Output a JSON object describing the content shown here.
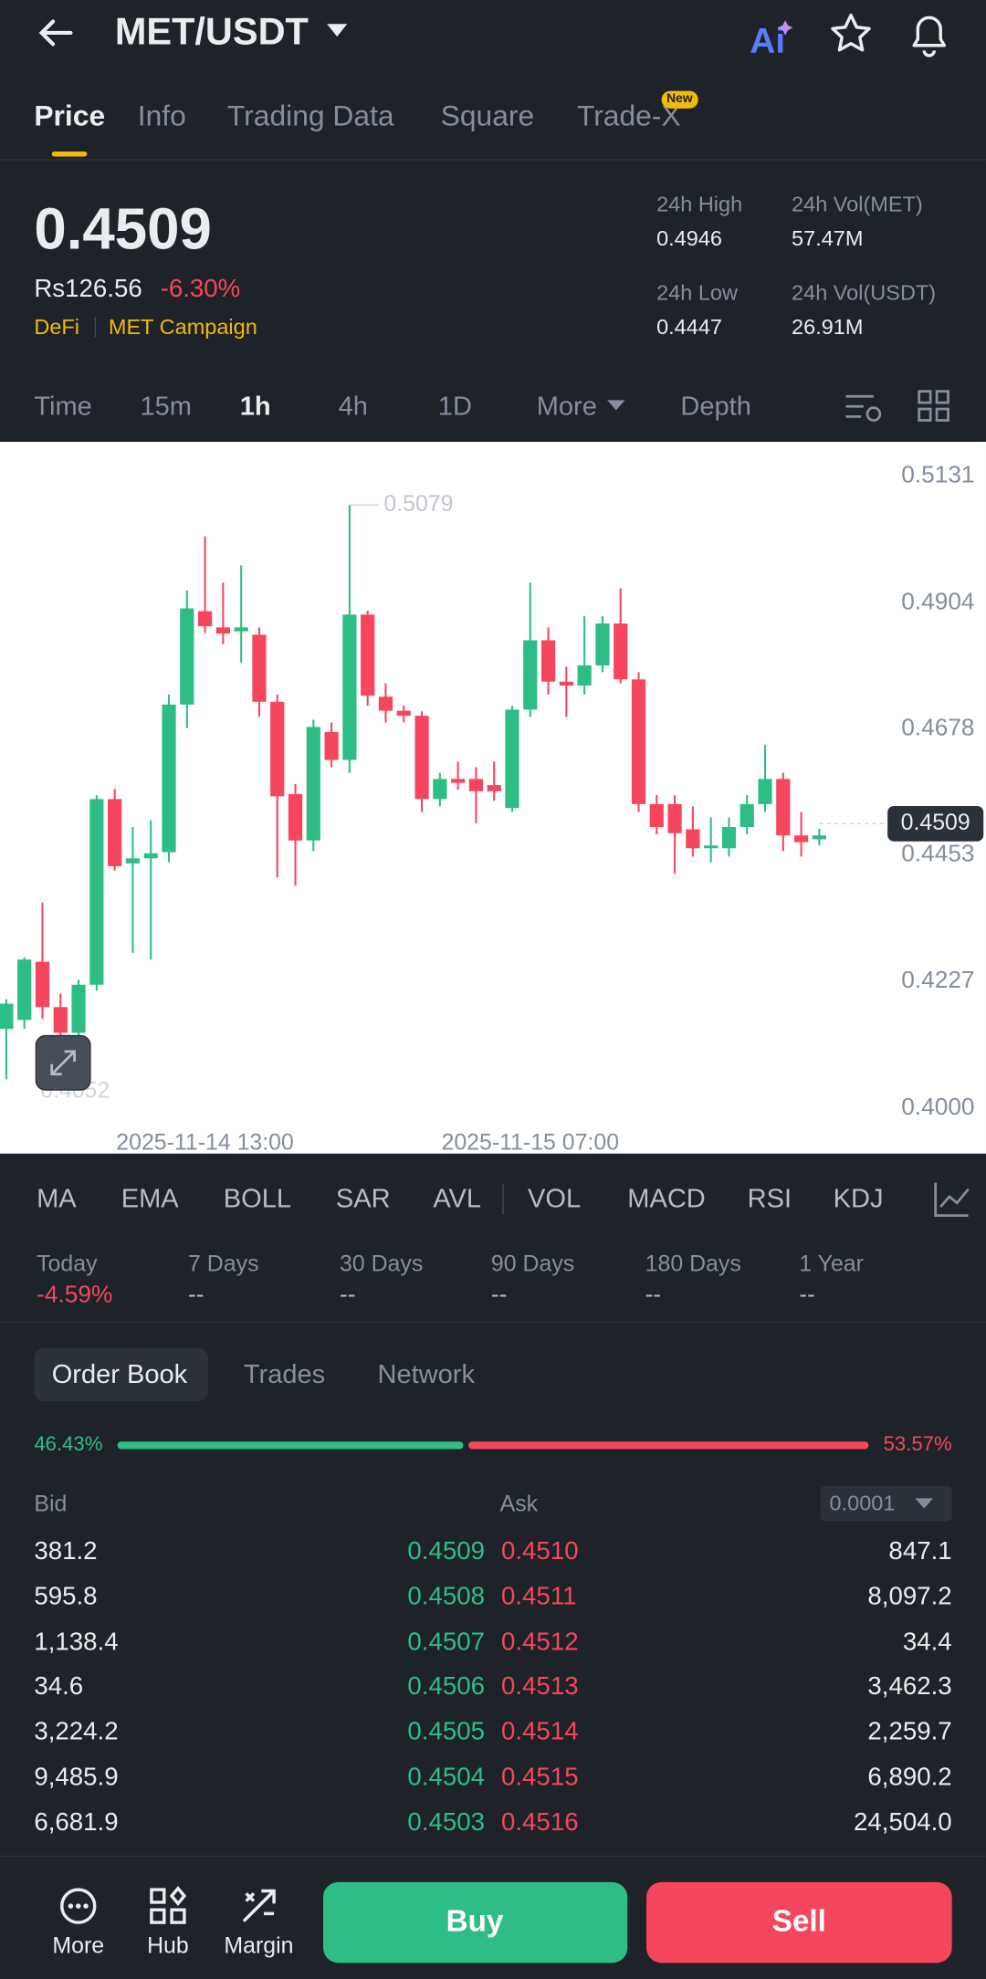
{
  "header": {
    "title": "MET/USDT"
  },
  "tabs": [
    "Price",
    "Info",
    "Trading Data",
    "Square",
    "Trade-X"
  ],
  "tab_badge": "New",
  "price": {
    "last": "0.4509",
    "local": "Rs126.56",
    "change": "-6.30%",
    "tags": [
      "DeFi",
      "MET Campaign"
    ]
  },
  "stats": [
    {
      "label": "24h High",
      "value": "0.4946"
    },
    {
      "label": "24h Vol(MET)",
      "value": "57.47M"
    },
    {
      "label": "24h Low",
      "value": "0.4447"
    },
    {
      "label": "24h Vol(USDT)",
      "value": "26.91M"
    }
  ],
  "intervals": [
    "Time",
    "15m",
    "1h",
    "4h",
    "1D",
    "More",
    "Depth"
  ],
  "chart": {
    "type": "candlestick",
    "up_color": "#2ebd85",
    "down_color": "#f6465d",
    "open": [
      0.4142,
      0.4158,
      0.4262,
      0.4181,
      0.4135,
      0.4221,
      0.4553,
      0.4438,
      0.4447,
      0.4458,
      0.4722,
      0.4889,
      0.486,
      0.4853,
      0.4847,
      0.4727,
      0.4562,
      0.4479,
      0.4673,
      0.4623,
      0.4883,
      0.4736,
      0.4711,
      0.4702,
      0.4553,
      0.4589,
      0.4589,
      0.4578,
      0.4537,
      0.4713,
      0.4837,
      0.4763,
      0.4756,
      0.4792,
      0.4867,
      0.4767,
      0.4544,
      0.4544,
      0.4499,
      0.4465,
      0.4465,
      0.4503,
      0.4544,
      0.4589,
      0.4488,
      0.4481
    ],
    "high": [
      0.4195,
      0.427,
      0.4368,
      0.4205,
      0.423,
      0.456,
      0.4571,
      0.4503,
      0.4515,
      0.474,
      0.4926,
      0.5023,
      0.494,
      0.4971,
      0.486,
      0.474,
      0.458,
      0.4695,
      0.469,
      0.5079,
      0.489,
      0.476,
      0.472,
      0.471,
      0.46,
      0.462,
      0.461,
      0.462,
      0.472,
      0.494,
      0.486,
      0.479,
      0.488,
      0.488,
      0.493,
      0.478,
      0.456,
      0.456,
      0.454,
      0.452,
      0.452,
      0.456,
      0.465,
      0.46,
      0.453,
      0.45
    ],
    "low": [
      0.4052,
      0.4142,
      0.416,
      0.411,
      0.412,
      0.421,
      0.4425,
      0.4278,
      0.4266,
      0.444,
      0.468,
      0.485,
      0.483,
      0.4797,
      0.47,
      0.4413,
      0.4398,
      0.446,
      0.461,
      0.46,
      0.472,
      0.469,
      0.469,
      0.453,
      0.454,
      0.457,
      0.451,
      0.455,
      0.453,
      0.47,
      0.474,
      0.47,
      0.474,
      0.478,
      0.476,
      0.453,
      0.449,
      0.442,
      0.445,
      0.444,
      0.445,
      0.449,
      0.453,
      0.446,
      0.445,
      0.447
    ],
    "close": [
      0.4187,
      0.4266,
      0.4181,
      0.4135,
      0.4221,
      0.4553,
      0.4433,
      0.4447,
      0.4456,
      0.4722,
      0.4894,
      0.4862,
      0.4849,
      0.486,
      0.4727,
      0.4558,
      0.4479,
      0.4682,
      0.4623,
      0.4883,
      0.4738,
      0.4711,
      0.4702,
      0.4553,
      0.4589,
      0.4582,
      0.4567,
      0.4567,
      0.4713,
      0.4837,
      0.4763,
      0.4756,
      0.4792,
      0.4867,
      0.4767,
      0.4544,
      0.4503,
      0.4492,
      0.4465,
      0.447,
      0.4503,
      0.4544,
      0.4589,
      0.4488,
      0.4476,
      0.4488
    ],
    "ylim": [
      0.4,
      0.5131
    ],
    "yticks": [
      0.5131,
      0.4904,
      0.4678,
      0.4453,
      0.4227,
      {
        "value": 0.4,
        "label": "0.4000"
      }
    ],
    "xticks": [
      {
        "value": 11,
        "label": "2025-11-14 13:00"
      },
      {
        "value": 29,
        "label": "2025-11-15 07:00"
      }
    ],
    "high_marker": 0.5079,
    "low_marker": 0.4052,
    "last_price": 0.4509
  },
  "indicators": [
    "MA",
    "EMA",
    "BOLL",
    "SAR",
    "AVL",
    "VOL",
    "MACD",
    "RSI",
    "KDJ"
  ],
  "performance": [
    {
      "label": "Today",
      "value": "-4.59%"
    },
    {
      "label": "7 Days",
      "value": "--"
    },
    {
      "label": "30 Days",
      "value": "--"
    },
    {
      "label": "90 Days",
      "value": "--"
    },
    {
      "label": "180 Days",
      "value": "--"
    },
    {
      "label": "1 Year",
      "value": "--"
    }
  ],
  "order_book": {
    "tabs": [
      "Order Book",
      "Trades",
      "Network"
    ],
    "bid_share": {
      "value": 46.43,
      "label": "46.43%"
    },
    "ask_share": {
      "value": 53.57,
      "label": "53.57%"
    },
    "bid_label": "Bid",
    "ask_label": "Ask",
    "precision": "0.0001",
    "rows": [
      [
        "381.2",
        "0.4509",
        "0.4510",
        "847.1"
      ],
      [
        "595.8",
        "0.4508",
        "0.4511",
        "8,097.2"
      ],
      [
        "1,138.4",
        "0.4507",
        "0.4512",
        "34.4"
      ],
      [
        "34.6",
        "0.4506",
        "0.4513",
        "3,462.3"
      ],
      [
        "3,224.2",
        "0.4505",
        "0.4514",
        "2,259.7"
      ],
      [
        "9,485.9",
        "0.4504",
        "0.4515",
        "6,890.2"
      ],
      [
        "6,681.9",
        "0.4503",
        "0.4516",
        "24,504.0"
      ]
    ]
  },
  "footer": {
    "nav": [
      "More",
      "Hub",
      "Margin"
    ],
    "buy": "Buy",
    "sell": "Sell"
  }
}
